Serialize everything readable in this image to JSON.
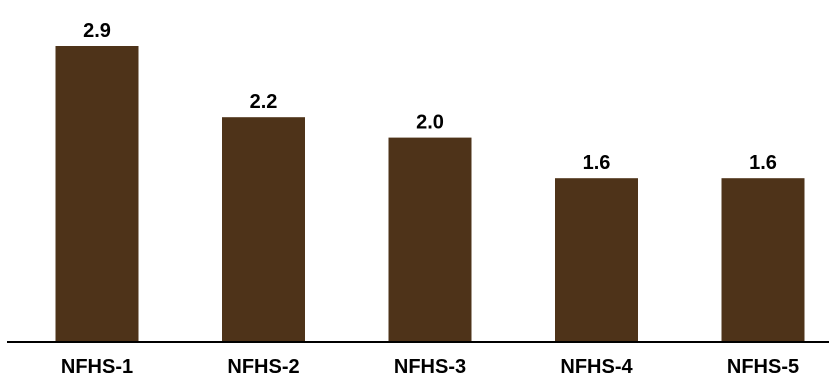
{
  "chart_data": {
    "type": "bar",
    "categories": [
      "NFHS-1",
      "NFHS-2",
      "NFHS-3",
      "NFHS-4",
      "NFHS-5"
    ],
    "values": [
      2.9,
      2.2,
      2.0,
      1.6,
      1.6
    ],
    "data_labels": [
      "2.9",
      "2.2",
      "2.0",
      "1.6",
      "1.6"
    ],
    "title": "",
    "xlabel": "",
    "ylabel": "",
    "ylim": [
      0,
      2.9
    ],
    "grid": false,
    "legend": "none",
    "bar_color": "#4e3319",
    "axis_color": "#000000"
  }
}
